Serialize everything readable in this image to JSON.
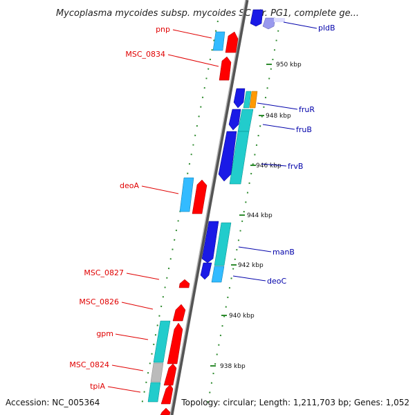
{
  "title": "Mycoplasma mycoides subsp. mycoides SC str. PG1, complete ge...",
  "footer": {
    "accession": "Accession: NC_005364",
    "topology": "Topology: circular; Length: 1,211,703 bp; Genes: 1,052"
  },
  "colors": {
    "backbone": "#8a8a8a",
    "tick": "#2e8b2e",
    "red_label": "#e00000",
    "blue_label": "#0000aa",
    "gene_red": "#ff0000",
    "gene_blue": "#1a1ae6",
    "gene_cyan": "#22cccc",
    "gene_lightblue": "#33bbff",
    "gene_gray": "#bbbbbb",
    "gene_orange": "#ff9900",
    "gene_lavender": "#9999ee"
  },
  "scale_labels": [
    "950 kbp",
    "948 kbp",
    "946 kbp",
    "944 kbp",
    "942 kbp",
    "940 kbp",
    "938 kbp"
  ],
  "left_gene_labels": [
    "pnp",
    "MSC_0834",
    "deoA",
    "MSC_0827",
    "MSC_0826",
    "gpm",
    "MSC_0824",
    "tpiA"
  ],
  "right_gene_labels": [
    "pldB",
    "fruR",
    "fruB",
    "frvB",
    "manB",
    "deoC"
  ]
}
